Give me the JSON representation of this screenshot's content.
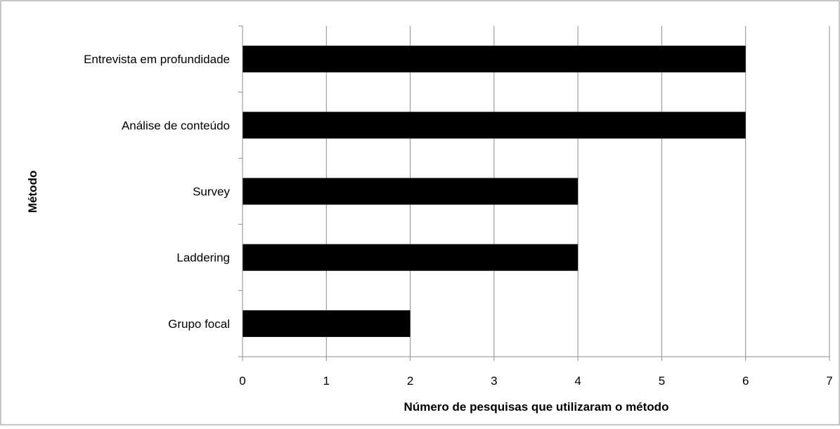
{
  "chart_data": {
    "type": "bar",
    "orientation": "horizontal",
    "categories": [
      "Entrevista em profundidade",
      "Análise de conteúdo",
      "Survey",
      "Laddering",
      "Grupo focal"
    ],
    "values": [
      6,
      6,
      4,
      4,
      2
    ],
    "title": "",
    "xlabel": "Número de pesquisas que utilizaram o método",
    "ylabel": "Método",
    "xlim": [
      0,
      7
    ],
    "xticks": [
      0,
      1,
      2,
      3,
      4,
      5,
      6,
      7
    ],
    "grid": "vertical",
    "legend": "none",
    "bar_color": "#000000",
    "grid_color": "#8c8c8c"
  }
}
